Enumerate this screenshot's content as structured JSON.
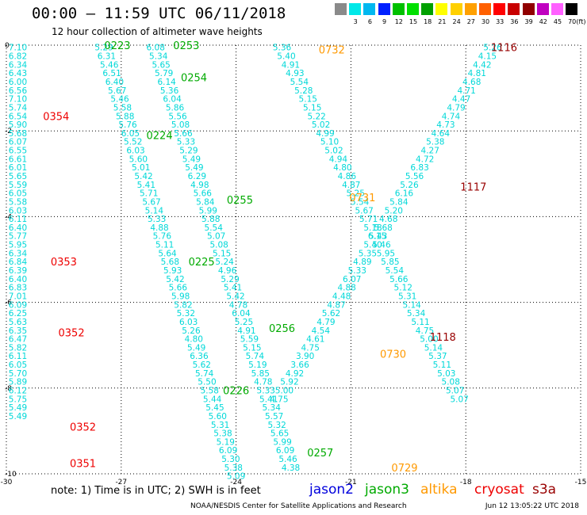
{
  "title": "00:00 – 11:59 UTC 06/11/2018",
  "subtitle": "12 hour collection of altimeter wave heights",
  "legend": {
    "unit": "(ft)",
    "bins": [
      {
        "label": "",
        "color": "#8a8a8a"
      },
      {
        "label": "3",
        "color": "#00e8e8"
      },
      {
        "label": "6",
        "color": "#00b8f0"
      },
      {
        "label": "9",
        "color": "#0020ff"
      },
      {
        "label": "12",
        "color": "#00c000"
      },
      {
        "label": "15",
        "color": "#00e000"
      },
      {
        "label": "18",
        "color": "#00a000"
      },
      {
        "label": "21",
        "color": "#ffff00"
      },
      {
        "label": "24",
        "color": "#ffd000"
      },
      {
        "label": "27",
        "color": "#ffa000"
      },
      {
        "label": "30",
        "color": "#ff6000"
      },
      {
        "label": "33",
        "color": "#ff0000"
      },
      {
        "label": "36",
        "color": "#c80000"
      },
      {
        "label": "39",
        "color": "#900000"
      },
      {
        "label": "42",
        "color": "#c000c0"
      },
      {
        "label": "45",
        "color": "#ff60ff"
      },
      {
        "label": "70",
        "color": "#000000"
      }
    ]
  },
  "note": "note: 1) Time is in UTC; 2) SWH is in feet",
  "satellites": [
    {
      "name": "jason2",
      "color": "#0000dd"
    },
    {
      "name": "jason3",
      "color": "#00aa00"
    },
    {
      "name": "altika",
      "color": "#ff9900"
    },
    {
      "name": "cryosat",
      "color": "#ee0000"
    },
    {
      "name": "s3a",
      "color": "#990000"
    }
  ],
  "footer": {
    "credit": "NOAA/NESDIS Center for Satellite Applications and Research",
    "timestamp": "Jun 12 13:05:22 UTC 2018"
  },
  "chart_data": {
    "type": "scatter",
    "title": "00:00 – 11:59 UTC 06/11/2018",
    "subtitle": "12 hour collection of altimeter wave heights",
    "unit": "ft",
    "xlim": [
      -30,
      -15
    ],
    "ylim": [
      -10,
      0
    ],
    "x_ticks": [
      "-30",
      "-27",
      "-24",
      "-21",
      "-18",
      "-15"
    ],
    "y_ticks": [
      "0",
      "-2",
      "-4",
      "-6",
      "-8",
      "-10"
    ],
    "grid": true,
    "point_color": "#00d8d8",
    "tracks": [
      {
        "satellite": "cryosat",
        "color": "#ee0000",
        "x0": -29.7,
        "y0": -0.05,
        "dx": 0.0,
        "dy": 0.2,
        "values": [
          "7.10",
          "6.82",
          "6.34",
          "6.43",
          "6.00",
          "6.56",
          "7.10",
          "5.74",
          "6.54",
          "5.90",
          "5.68",
          "6.07",
          "6.55",
          "6.61",
          "6.01",
          "5.65",
          "5.59",
          "6.05",
          "5.58",
          "6.03",
          "6.11",
          "6.40",
          "5.77",
          "5.95",
          "6.34",
          "6.84",
          "6.39",
          "6.40",
          "6.83",
          "7.01",
          "6.09",
          "6.25",
          "5.63",
          "6.35",
          "6.47",
          "5.82",
          "6.11",
          "6.05",
          "5.70",
          "5.89",
          "6.12",
          "5.75",
          "5.49",
          "5.49"
        ],
        "labels": [
          {
            "text": "0354",
            "x": -28.7,
            "y": -1.65
          },
          {
            "text": "0353",
            "x": -28.5,
            "y": -5.05
          },
          {
            "text": "0352",
            "x": -28.3,
            "y": -6.7
          },
          {
            "text": "0352",
            "x": -28.0,
            "y": -8.9
          },
          {
            "text": "0351",
            "x": -28.0,
            "y": -9.75
          }
        ]
      },
      {
        "satellite": "jason3",
        "color": "#00aa00",
        "x0": -27.45,
        "y0": -0.05,
        "dx": 0.069,
        "dy": 0.2,
        "values": [
          "5.29",
          "6.31",
          "5.46",
          "6.51",
          "6.40",
          "5.67",
          "5.46",
          "5.58",
          "5.88",
          "5.76",
          "6.05",
          "5.52",
          "6.03",
          "5.60",
          "5.01",
          "5.42",
          "5.41",
          "5.71",
          "5.67",
          "5.14",
          "5.33",
          "4.88",
          "5.76",
          "5.11",
          "5.64",
          "5.68",
          "5.93",
          "5.42",
          "5.66",
          "5.98",
          "5.82",
          "5.32",
          "6.03",
          "5.26",
          "4.80",
          "5.49",
          "6.36",
          "5.62",
          "5.74",
          "5.50",
          "5.58",
          "5.44",
          "5.45",
          "5.60",
          "5.31",
          "5.38",
          "5.19",
          "6.09",
          "5.30",
          "5.38",
          "5.09"
        ],
        "labels": [
          {
            "text": "0223",
            "x": -27.1,
            "y": 0.0
          },
          {
            "text": "0224",
            "x": -26.0,
            "y": -2.1
          },
          {
            "text": "0225",
            "x": -24.9,
            "y": -5.05
          },
          {
            "text": "0226",
            "x": -24.0,
            "y": -8.05
          }
        ]
      },
      {
        "satellite": "jason3",
        "color": "#00aa00",
        "x0": -26.1,
        "y0": -0.05,
        "dx": 0.072,
        "dy": 0.2,
        "values": [
          "6.08",
          "5.34",
          "5.65",
          "5.79",
          "6.14",
          "5.36",
          "6.04",
          "5.86",
          "5.56",
          "5.08",
          "5.66",
          "5.33",
          "5.29",
          "5.49",
          "5.49",
          "6.29",
          "4.98",
          "5.66",
          "5.84",
          "5.99",
          "5.88",
          "5.54",
          "5.07",
          "5.08",
          "5.15",
          "5.24",
          "4.96",
          "5.29",
          "5.41",
          "5.42",
          "4.78",
          "6.04",
          "5.25",
          "4.91",
          "5.59",
          "5.15",
          "5.74",
          "5.19",
          "5.85",
          "4.78",
          "5.33",
          "5.41",
          "5.34",
          "5.57",
          "5.32",
          "5.65",
          "5.99",
          "6.09",
          "5.46",
          "4.38"
        ],
        "labels": [
          {
            "text": "0253",
            "x": -25.3,
            "y": 0.0
          },
          {
            "text": "0254",
            "x": -25.1,
            "y": -0.75
          },
          {
            "text": "0255",
            "x": -23.9,
            "y": -3.6
          },
          {
            "text": "0256",
            "x": -22.8,
            "y": -6.6
          },
          {
            "text": "0257",
            "x": -21.8,
            "y": -9.5
          }
        ]
      },
      {
        "satellite": "altika",
        "color": "#ff9900",
        "x0": -22.8,
        "y0": -0.05,
        "dx": 0.113,
        "dy": 0.2,
        "values": [
          "5.36",
          "5.40",
          "4.91",
          "4.93",
          "5.54",
          "5.28",
          "5.15",
          "5.15",
          "5.22",
          "5.02",
          "4.99",
          "5.10",
          "5.02",
          "4.94",
          "4.80",
          "4.86",
          "4.87",
          "5.25",
          "5.54",
          "5.67",
          "5.71",
          "5.18",
          "6.15",
          "5.46",
          "5.95",
          "5.85",
          "5.54",
          "5.66",
          "5.12",
          "5.31",
          "5.14",
          "5.34",
          "5.11",
          "4.75",
          "5.00",
          "5.14",
          "5.37",
          "5.11",
          "5.03",
          "5.08",
          "5.07",
          "5.07"
        ],
        "labels": [
          {
            "text": "0732",
            "x": -21.5,
            "y": -0.1
          },
          {
            "text": "0731",
            "x": -20.7,
            "y": -3.55
          },
          {
            "text": "0730",
            "x": -19.9,
            "y": -7.2
          },
          {
            "text": "0729",
            "x": -19.6,
            "y": -9.85
          }
        ]
      },
      {
        "satellite": "s3a",
        "color": "#990000",
        "x0": -17.3,
        "y0": -0.05,
        "dx": -0.136,
        "dy": 0.2,
        "values": [
          "5.26",
          "4.15",
          "4.42",
          "4.81",
          "4.68",
          "4.71",
          "4.47",
          "4.79",
          "4.74",
          "4.73",
          "4.64",
          "5.38",
          "4.27",
          "4.72",
          "6.83",
          "5.56",
          "5.26",
          "6.16",
          "5.84",
          "5.20",
          "4.68",
          "5.68",
          "5.43",
          "5.40",
          "5.35",
          "4.89",
          "5.33",
          "6.07",
          "4.88",
          "4.48",
          "4.87",
          "5.62",
          "4.79",
          "4.54",
          "4.61",
          "4.75",
          "3.90",
          "3.66",
          "4.92",
          "5.92",
          "5.00",
          "4.75"
        ],
        "labels": [
          {
            "text": "1116",
            "x": -17.0,
            "y": -0.05
          },
          {
            "text": "1117",
            "x": -17.8,
            "y": -3.3
          },
          {
            "text": "1118",
            "x": -18.6,
            "y": -6.8
          }
        ]
      }
    ]
  }
}
